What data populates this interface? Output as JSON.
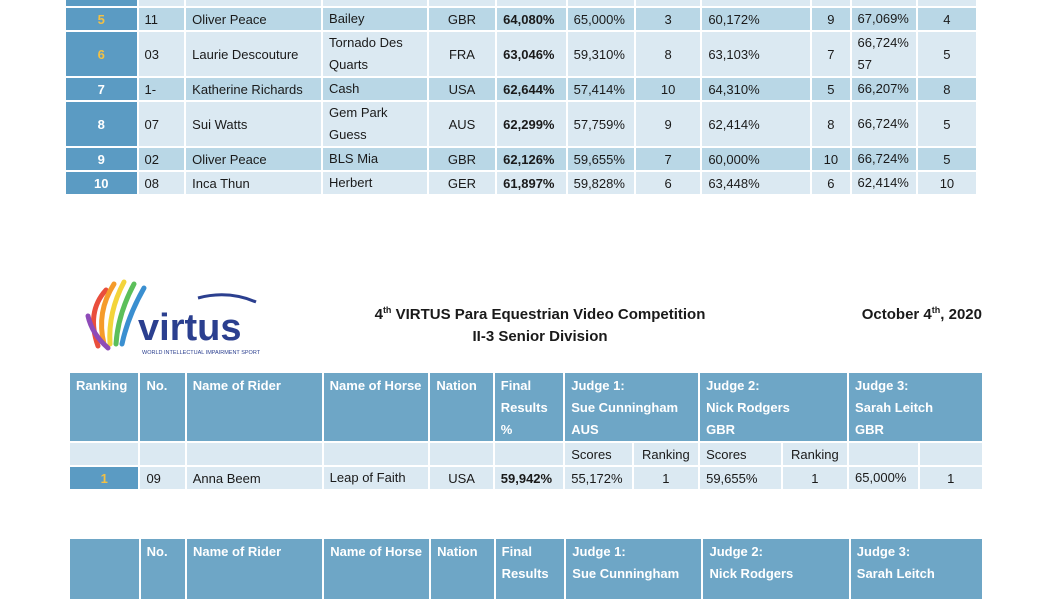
{
  "top_table": {
    "rows": [
      {
        "rank": "",
        "no": "",
        "rider": "",
        "horse": "",
        "nation": "",
        "final": "",
        "j1": "",
        "j1r": "",
        "j2": "",
        "j2r": "",
        "j3": "",
        "j3r": ""
      },
      {
        "rank": "5",
        "no": "11",
        "rider": "Oliver Peace",
        "horse": "Bailey",
        "nation": "GBR",
        "final": "64,080%",
        "j1": "65,000%",
        "j1r": "3",
        "j2": "60,172%",
        "j2r": "9",
        "j3": "67,069%",
        "j3r": "4"
      },
      {
        "rank": "6",
        "no": "03",
        "rider": "Laurie Descouture",
        "horse": "Tornado Des Quarts",
        "nation": "FRA",
        "final": "63,046%",
        "j1": "59,310%",
        "j1r": "8",
        "j2": "63,103%",
        "j2r": "7",
        "j3": "66,724% 57",
        "j3r": "5"
      },
      {
        "rank": "7",
        "no": "1-",
        "rider": "Katherine Richards",
        "horse": "Cash",
        "nation": "USA",
        "final": "62,644%",
        "j1": "57,414%",
        "j1r": "10",
        "j2": "64,310%",
        "j2r": "5",
        "j3": "66,207%",
        "j3r": "8"
      },
      {
        "rank": "8",
        "no": "07",
        "rider": "Sui Watts",
        "horse": "Gem Park Guess",
        "nation": "AUS",
        "final": "62,299%",
        "j1": "57,759%",
        "j1r": "9",
        "j2": "62,414%",
        "j2r": "8",
        "j3": "66,724%",
        "j3r": "5"
      },
      {
        "rank": "9",
        "no": "02",
        "rider": "Oliver Peace",
        "horse": "BLS Mia",
        "nation": "GBR",
        "final": "62,126%",
        "j1": "59,655%",
        "j1r": "7",
        "j2": "60,000%",
        "j2r": "10",
        "j3": "66,724%",
        "j3r": "5"
      },
      {
        "rank": "10",
        "no": "08",
        "rider": "Inca Thun",
        "horse": "Herbert",
        "nation": "GER",
        "final": "61,897%",
        "j1": "59,828%",
        "j1r": "6",
        "j2": "63,448%",
        "j2r": "6",
        "j3": "62,414%",
        "j3r": "10"
      }
    ]
  },
  "logo": {
    "wordmark": "virtus",
    "tagline": "WORLD INTELLECTUAL IMPAIRMENT SPORT"
  },
  "event": {
    "ordinal": "4",
    "ordinal_suffix": "th",
    "title_rest": " VIRTUS Para Equestrian Video Competition",
    "division": "II-3 Senior Division",
    "date_prefix": "October 4",
    "date_suffix": "th",
    "date_year": ", 2020"
  },
  "senior_table": {
    "headers": {
      "ranking": "Ranking",
      "no": "No.",
      "rider": "Name of Rider",
      "horse": "Name of Horse",
      "nation": "Nation",
      "final": "Final Results %",
      "judge1_title": "Judge 1:",
      "judge1_name": "Sue Cunningham",
      "judge1_nation": "AUS",
      "judge2_title": "Judge 2:",
      "judge2_name": "Nick Rodgers",
      "judge2_nation": "GBR",
      "judge3_title": "Judge 3:",
      "judge3_name": "Sarah Leitch",
      "judge3_nation": "GBR"
    },
    "subheaders": {
      "scores1": "Scores",
      "ranking1": "Ranking",
      "scores2": "Scores",
      "ranking2": "Ranking"
    },
    "rows": [
      {
        "rank": "1",
        "no": "09",
        "rider": "Anna Beem",
        "horse": "Leap of Faith",
        "nation": "USA",
        "final": "59,942%",
        "j1": "55,172%",
        "j1r": "1",
        "j2": "59,655%",
        "j2r": "1",
        "j3": "65,000%",
        "j3r": "1"
      }
    ]
  },
  "next_table": {
    "headers": {
      "no": "No.",
      "rider": "Name of Rider",
      "horse": "Name of Horse",
      "nation": "Nation",
      "final": "Final Results",
      "judge1_title": "Judge 1:",
      "judge1_name": "Sue Cunningham",
      "judge2_title": "Judge 2:",
      "judge2_name": "Nick Rodgers",
      "judge3_title": "Judge 3:",
      "judge3_name": "Sarah Leitch"
    }
  },
  "colors": {
    "header_blue": "#6ea6c6",
    "rank_blue": "#5b9bc3",
    "row_light": "#dbe9f2",
    "row_dark": "#b9d7e6",
    "gold": "#f3c043"
  }
}
